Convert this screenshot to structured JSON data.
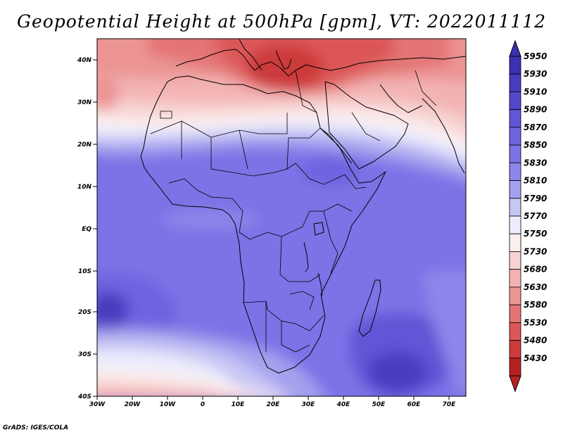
{
  "title": "Geopotential Height at 500hPa [gpm], VT: 2022011112",
  "footer": "GrADS: IGES/COLA",
  "lat_labels": [
    "40N",
    "30N",
    "20N",
    "10N",
    "EQ",
    "10S",
    "20S",
    "30S",
    "40S"
  ],
  "lon_labels": [
    "30W",
    "20W",
    "10W",
    "0",
    "10E",
    "20E",
    "30E",
    "40E",
    "50E",
    "60E",
    "70E"
  ],
  "colorbar": {
    "levels": [
      "5950",
      "5930",
      "5910",
      "5890",
      "5870",
      "5850",
      "5830",
      "5810",
      "5790",
      "5770",
      "5750",
      "5730",
      "5680",
      "5630",
      "5580",
      "5530",
      "5480",
      "5430"
    ],
    "colors": [
      "#3d2fb0",
      "#4a3cc0",
      "#5548cc",
      "#6255d6",
      "#6e64e0",
      "#7b73e6",
      "#8c86ea",
      "#a4a1ee",
      "#c7c6f5",
      "#ececfc",
      "#fbeeee",
      "#f8d2d2",
      "#f3b3b3",
      "#ec9494",
      "#e47474",
      "#dc5757",
      "#cc3a3a",
      "#b62222"
    ]
  },
  "colors": {
    "background": "#ffffff",
    "text": "#000000",
    "coast": "#000000"
  }
}
